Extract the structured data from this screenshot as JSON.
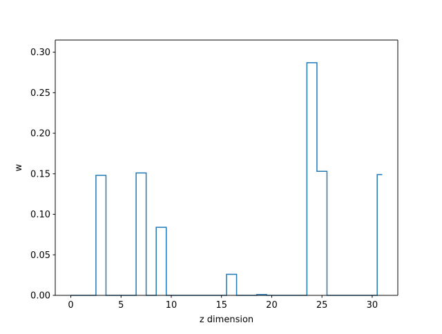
{
  "chart_data": {
    "type": "step",
    "xlabel": "z dimension",
    "ylabel": "w",
    "xlim": [
      -1.55,
      32.55
    ],
    "ylim": [
      0,
      0.315
    ],
    "xticks": [
      0,
      5,
      10,
      15,
      20,
      25,
      30
    ],
    "yticks": [
      0.0,
      0.05,
      0.1,
      0.15,
      0.2,
      0.25,
      0.3
    ],
    "xtick_labels": [
      "0",
      "5",
      "10",
      "15",
      "20",
      "25",
      "30"
    ],
    "ytick_labels": [
      "0.00",
      "0.05",
      "0.10",
      "0.15",
      "0.20",
      "0.25",
      "0.30"
    ],
    "grid": false,
    "line_color": "#1f77b4",
    "series": [
      {
        "values": [
          0,
          0,
          0,
          0.148,
          0,
          0,
          0,
          0.151,
          0,
          0.084,
          0,
          0,
          0,
          0,
          0,
          0,
          0.026,
          0,
          0,
          0.001,
          0,
          0,
          0,
          0,
          0.287,
          0.153,
          0,
          0,
          0,
          0,
          0,
          0.149
        ]
      }
    ]
  }
}
